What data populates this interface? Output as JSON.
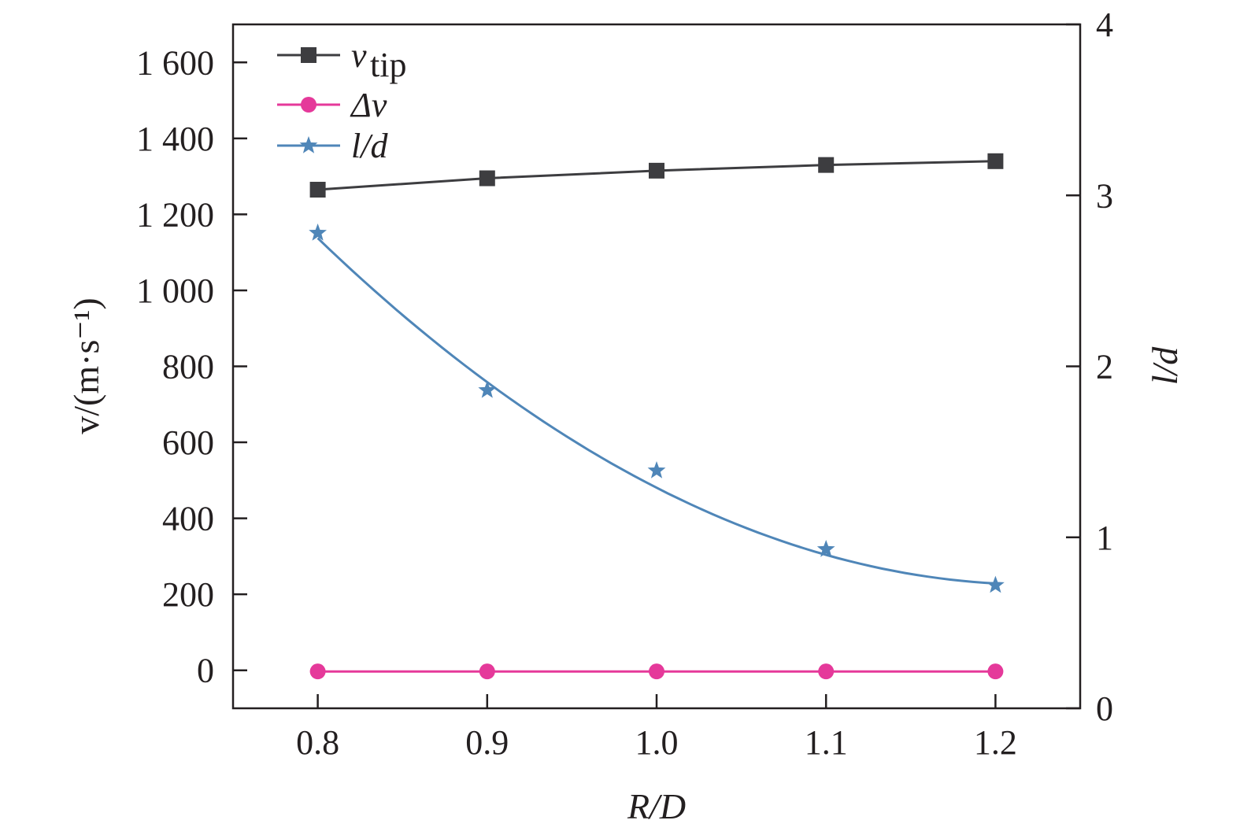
{
  "chart_data": {
    "type": "line",
    "x": [
      0.8,
      0.9,
      1.0,
      1.1,
      1.2
    ],
    "xlabel": "R/D",
    "xlim": [
      0.75,
      1.25
    ],
    "xticks": [
      "0.8",
      "0.9",
      "1.0",
      "1.1",
      "1.2"
    ],
    "ylabel_left": "v/(m·s⁻¹)",
    "ylim_left": [
      -100,
      1700
    ],
    "yticks_left": [
      "0",
      "200",
      "400",
      "600",
      "800",
      "1 000",
      "1 200",
      "1 400",
      "1 600"
    ],
    "ylabel_right": "l/d",
    "ylim_right": [
      0,
      4
    ],
    "yticks_right": [
      "0",
      "1",
      "2",
      "3",
      "4"
    ],
    "legend_position": "top-left",
    "series": [
      {
        "name": "v",
        "name_sub": "tip",
        "axis": "left",
        "marker": "square",
        "color": "#3d3d40",
        "values": [
          1265,
          1295,
          1315,
          1330,
          1340
        ]
      },
      {
        "name": "Δv",
        "axis": "left",
        "marker": "circle",
        "color": "#e5399a",
        "values": [
          -3,
          -3,
          -3,
          -3,
          -3
        ]
      },
      {
        "name": "l/d",
        "axis": "right",
        "marker": "star",
        "color": "#4f86b8",
        "values": [
          2.78,
          1.86,
          1.39,
          0.93,
          0.72
        ],
        "fit": {
          "kind": "quadratic",
          "x": [
            0.8,
            1.0,
            1.2
          ],
          "y": [
            2.75,
            1.29,
            0.73
          ]
        }
      }
    ]
  }
}
